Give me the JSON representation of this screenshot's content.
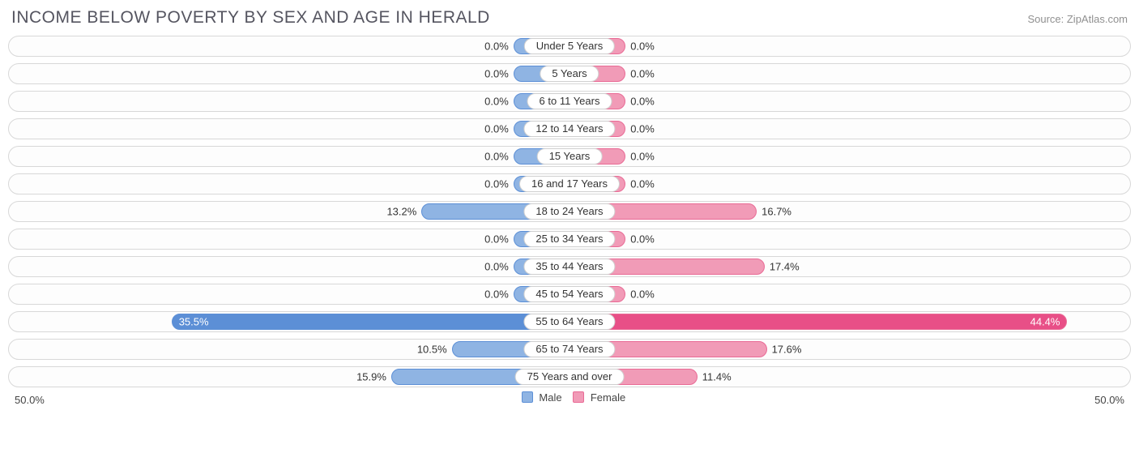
{
  "title": "INCOME BELOW POVERTY BY SEX AND AGE IN HERALD",
  "source": "Source: ZipAtlas.com",
  "axis_max": 50.0,
  "axis_label_left": "50.0%",
  "axis_label_right": "50.0%",
  "min_bar_pct": 5.0,
  "colors": {
    "male_fill": "#8fb4e3",
    "male_border": "#5c8fd6",
    "male_strong": "#5c8fd6",
    "female_fill": "#f19bb7",
    "female_border": "#e96a95",
    "female_strong": "#e84f87",
    "track_border": "#d8d8d8",
    "text": "#333333"
  },
  "legend": {
    "male": "Male",
    "female": "Female"
  },
  "rows": [
    {
      "label": "Under 5 Years",
      "male": 0.0,
      "female": 0.0
    },
    {
      "label": "5 Years",
      "male": 0.0,
      "female": 0.0
    },
    {
      "label": "6 to 11 Years",
      "male": 0.0,
      "female": 0.0
    },
    {
      "label": "12 to 14 Years",
      "male": 0.0,
      "female": 0.0
    },
    {
      "label": "15 Years",
      "male": 0.0,
      "female": 0.0
    },
    {
      "label": "16 and 17 Years",
      "male": 0.0,
      "female": 0.0
    },
    {
      "label": "18 to 24 Years",
      "male": 13.2,
      "female": 16.7
    },
    {
      "label": "25 to 34 Years",
      "male": 0.0,
      "female": 0.0
    },
    {
      "label": "35 to 44 Years",
      "male": 0.0,
      "female": 17.4
    },
    {
      "label": "45 to 54 Years",
      "male": 0.0,
      "female": 0.0
    },
    {
      "label": "55 to 64 Years",
      "male": 35.5,
      "female": 44.4
    },
    {
      "label": "65 to 74 Years",
      "male": 10.5,
      "female": 17.6
    },
    {
      "label": "75 Years and over",
      "male": 15.9,
      "female": 11.4
    }
  ]
}
